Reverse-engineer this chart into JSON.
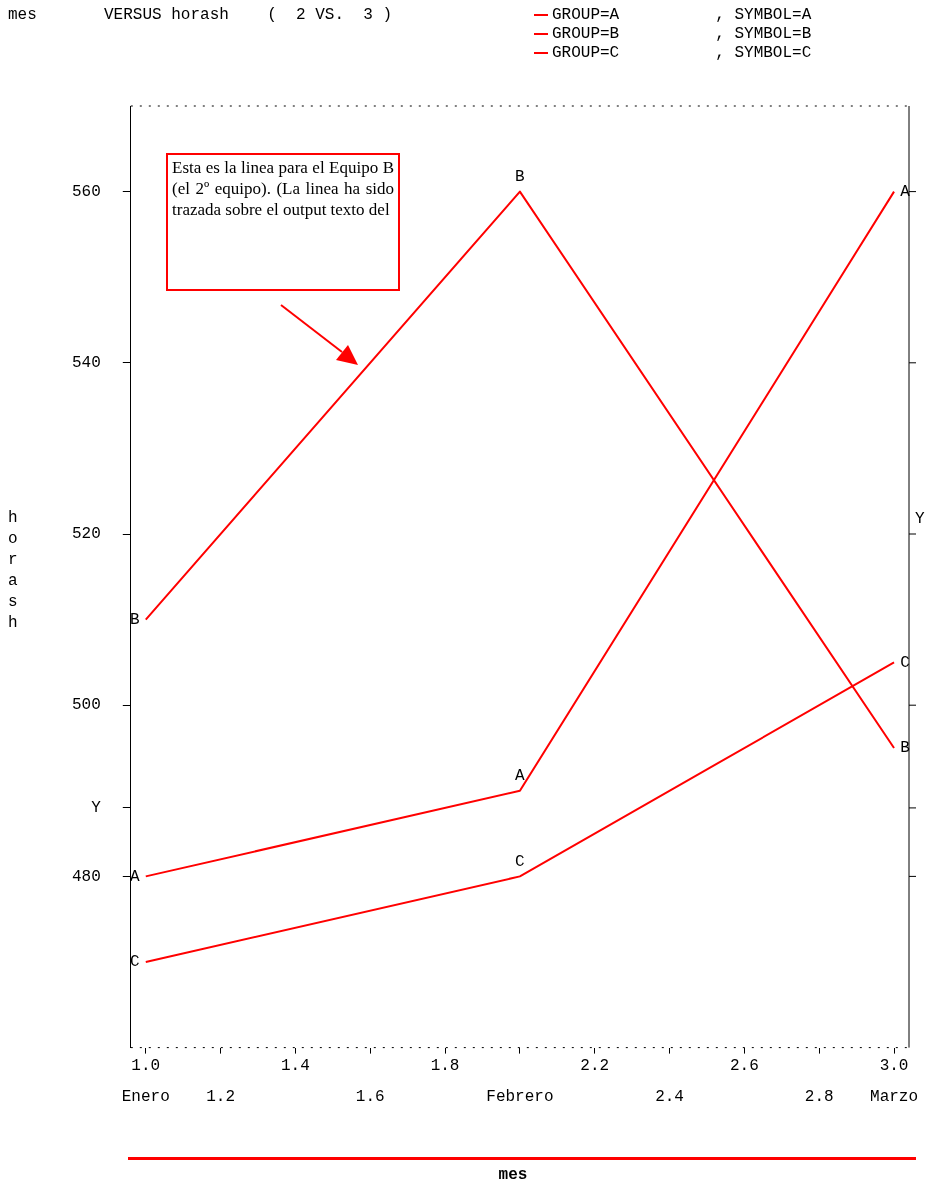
{
  "chart_data": {
    "type": "line",
    "title": "mes       VERSUS horash    (  2 VS.  3 )",
    "xlabel": "mes",
    "ylabel": "horash",
    "legend": "top right",
    "grid": false,
    "marker": "none",
    "line_style": "solid",
    "x": [
      1,
      2,
      3
    ],
    "series": [
      {
        "name": "GROUP=A          , SYMBOL=A",
        "color": "#ff0000",
        "values": [
          480,
          490,
          560
        ]
      },
      {
        "name": "GROUP=B          , SYMBOL=B",
        "color": "#ff0000",
        "values": [
          510,
          560,
          495
        ]
      },
      {
        "name": "GROUP=C          , SYMBOL=C",
        "color": "#ff0000",
        "values": [
          470,
          480,
          505
        ]
      }
    ],
    "xlim": [
      0.96,
      3.04
    ],
    "xticks": [
      {
        "value": 1,
        "label": "1.0"
      },
      {
        "value": 1.2,
        "label": null
      },
      {
        "value": 1.4,
        "label": "1.4"
      },
      {
        "value": 1.6,
        "label": null
      },
      {
        "value": 1.8,
        "label": "1.8"
      },
      {
        "value": 2,
        "label": null
      },
      {
        "value": 2.2,
        "label": "2.2"
      },
      {
        "value": 2.4,
        "label": null
      },
      {
        "value": 2.6,
        "label": "2.6"
      },
      {
        "value": 2.8,
        "label": null
      },
      {
        "value": 3,
        "label": "3.0"
      }
    ],
    "x2lim": [
      0.96,
      3.04
    ],
    "x2ticks": [
      {
        "value": 1,
        "label": "Enero"
      },
      1.2,
      1.6,
      {
        "value": 2,
        "label": "Febrero"
      },
      2.4,
      2.8,
      {
        "value": 3,
        "label": "Marzo"
      }
    ],
    "ylim": [
      460,
      570
    ],
    "yticks": [
      480,
      {
        "value": 488,
        "label": "Y"
      },
      500,
      520,
      540,
      560
    ],
    "annotations": [
      {
        "text": "A",
        "x": 1,
        "y": 480
      },
      {
        "text": "A",
        "x": 2,
        "y": 490
      },
      {
        "text": "A",
        "x": 3,
        "y": 560
      },
      {
        "text": "B",
        "x": 1,
        "y": 510
      },
      {
        "text": "B",
        "x": 2,
        "y": 560
      },
      {
        "text": "B",
        "x": 3,
        "y": 495
      },
      {
        "text": "C",
        "x": 1,
        "y": 470
      },
      {
        "text": "C",
        "x": 2,
        "y": 480
      },
      {
        "text": "C",
        "x": 3,
        "y": 505
      },
      "Y",
      "Esta es la linea para el Equipo B (el 2º equipo). (La linea ha sido trazada sobre el output texto del"
    ]
  }
}
